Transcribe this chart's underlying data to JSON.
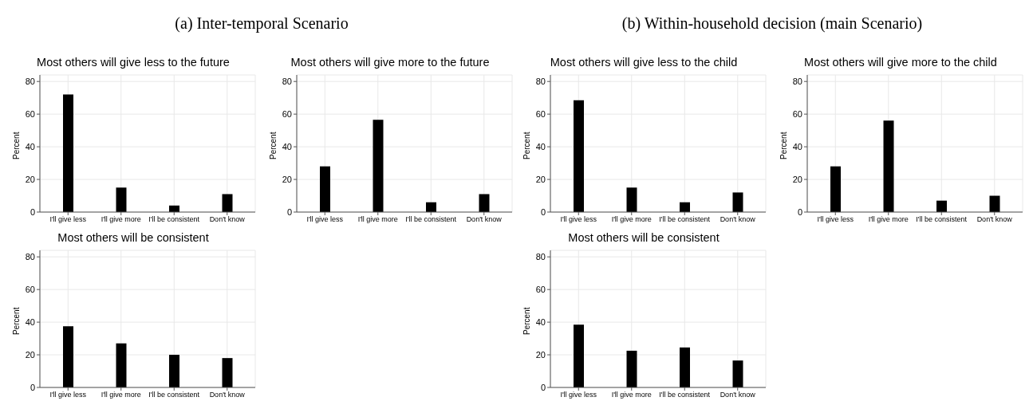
{
  "chart_data": [
    {
      "type": "bar",
      "title": "Most others will give less to the future",
      "annotations": [
        "(a) Inter-temporal Scenario"
      ],
      "ylabel": "Percent",
      "categories": [
        "I'll give less",
        "I'll give more",
        "I'll be consistent",
        "Don't know"
      ],
      "values": [
        72,
        15,
        4,
        11
      ],
      "color": "#000000",
      "ylim": [
        0,
        84
      ],
      "yticks": [
        0,
        20,
        40,
        60,
        80
      ],
      "grid": true,
      "legend": false
    },
    {
      "type": "bar",
      "title": "Most others will give more to the future",
      "ylabel": "Percent",
      "categories": [
        "I'll give less",
        "I'll give more",
        "I'll be consistent",
        "Don't know"
      ],
      "values": [
        28,
        56.5,
        6,
        11
      ],
      "color": "#000000",
      "ylim": [
        0,
        84
      ],
      "yticks": [
        0,
        20,
        40,
        60,
        80
      ],
      "grid": true,
      "legend": false
    },
    {
      "type": "bar",
      "title": "Most others will be consistent",
      "ylabel": "Percent",
      "categories": [
        "I'll give less",
        "I'll give more",
        "I'll be consistent",
        "Don't know"
      ],
      "values": [
        37.5,
        27,
        20,
        18
      ],
      "color": "#000000",
      "ylim": [
        0,
        84
      ],
      "yticks": [
        0,
        20,
        40,
        60,
        80
      ],
      "grid": true,
      "legend": false
    },
    {
      "type": "bar",
      "title": "Most others will give less to the child",
      "annotations": [
        "(b) Within-household decision (main Scenario)"
      ],
      "ylabel": "Percent",
      "categories": [
        "I'll give less",
        "I'll give more",
        "I'll be consistent",
        "Don't know"
      ],
      "values": [
        68.5,
        15,
        6,
        12
      ],
      "color": "#000000",
      "ylim": [
        0,
        84
      ],
      "yticks": [
        0,
        20,
        40,
        60,
        80
      ],
      "grid": true,
      "legend": false
    },
    {
      "type": "bar",
      "title": "Most others will give more to the child",
      "ylabel": "Percent",
      "categories": [
        "I'll give less",
        "I'll give more",
        "I'll be consistent",
        "Don't know"
      ],
      "values": [
        28,
        56,
        7,
        10
      ],
      "color": "#000000",
      "ylim": [
        0,
        84
      ],
      "yticks": [
        0,
        20,
        40,
        60,
        80
      ],
      "grid": true,
      "legend": false
    },
    {
      "type": "bar",
      "title": "Most others will be consistent",
      "ylabel": "Percent",
      "categories": [
        "I'll give less",
        "I'll give more",
        "I'll be consistent",
        "Don't know"
      ],
      "values": [
        38.5,
        22.5,
        24.5,
        16.5
      ],
      "color": "#000000",
      "ylim": [
        0,
        84
      ],
      "yticks": [
        0,
        20,
        40,
        60,
        80
      ],
      "grid": true,
      "legend": false
    }
  ]
}
